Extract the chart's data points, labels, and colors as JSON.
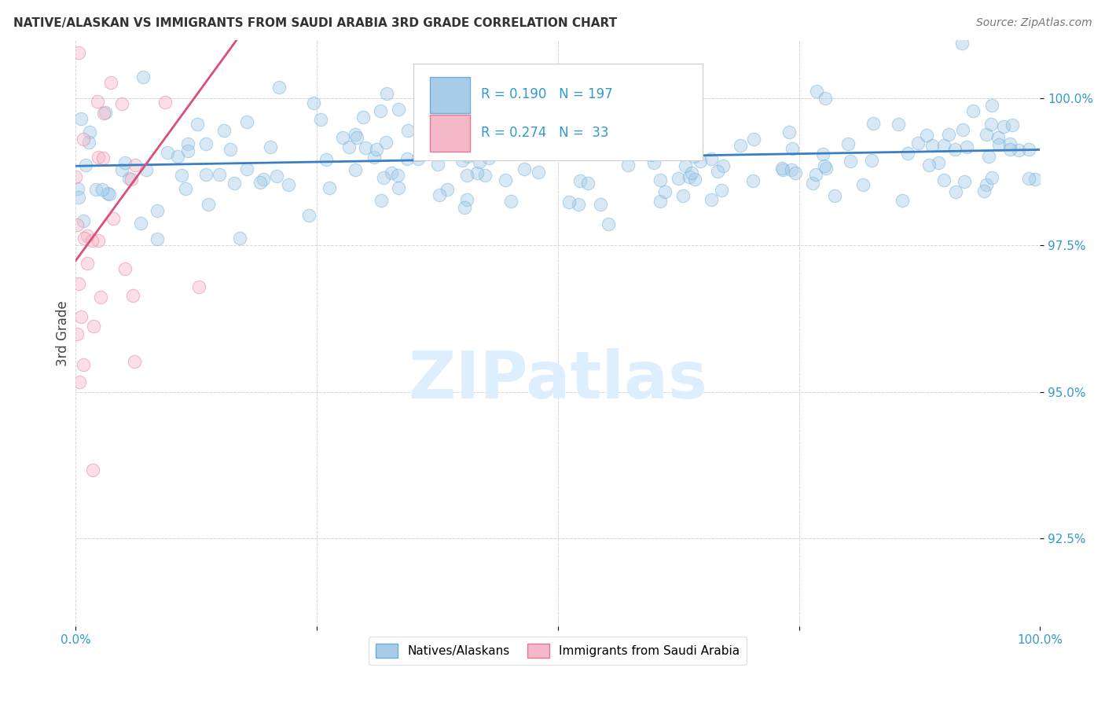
{
  "title": "NATIVE/ALASKAN VS IMMIGRANTS FROM SAUDI ARABIA 3RD GRADE CORRELATION CHART",
  "source": "Source: ZipAtlas.com",
  "ylabel": "3rd Grade",
  "ytick_labels": [
    "92.5%",
    "95.0%",
    "97.5%",
    "100.0%"
  ],
  "ytick_values": [
    92.5,
    95.0,
    97.5,
    100.0
  ],
  "xmin": 0.0,
  "xmax": 100.0,
  "ymin": 91.0,
  "ymax": 101.0,
  "legend1_label": "Natives/Alaskans",
  "legend2_label": "Immigrants from Saudi Arabia",
  "R_blue": 0.19,
  "N_blue": 197,
  "R_pink": 0.274,
  "N_pink": 33,
  "blue_color": "#a8cce8",
  "pink_color": "#f4b8c8",
  "blue_edge_color": "#6aaed6",
  "pink_edge_color": "#e07898",
  "blue_line_color": "#3a7fc1",
  "pink_line_color": "#d94f78",
  "title_color": "#333333",
  "source_color": "#777777",
  "axis_label_color": "#3399cc",
  "watermark_text_color": "#ddeeff",
  "background_color": "#ffffff",
  "grid_color": "#cccccc",
  "seed_blue": 12,
  "seed_pink": 99
}
